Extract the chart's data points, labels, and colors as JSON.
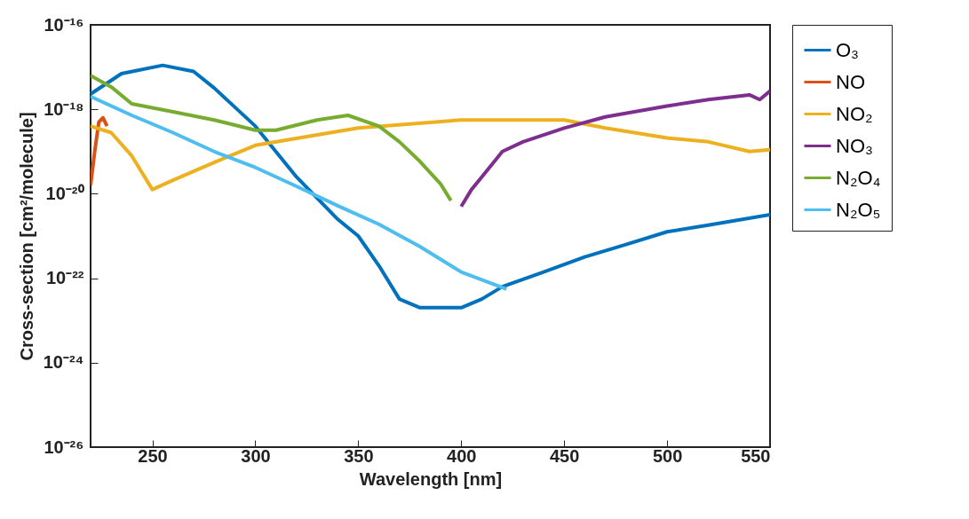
{
  "chart_data": {
    "type": "line",
    "xlabel": "Wavelength [nm]",
    "ylabel": "Cross-section [cm²/molecule]",
    "log": "y",
    "grid": false,
    "legend": "top right",
    "line_style": "solid",
    "xlim": [
      220,
      550
    ],
    "xticks": [
      250,
      300,
      350,
      400,
      450,
      500,
      550
    ],
    "ylim": [
      1e-26,
      1e-16
    ],
    "yticks": [
      {
        "value": 1e-26,
        "label": "10⁻²⁶"
      },
      {
        "value": 1e-24,
        "label": "10⁻²⁴"
      },
      {
        "value": 1e-22,
        "label": "10⁻²²"
      },
      {
        "value": 1e-20,
        "label": "10⁻²⁰"
      },
      {
        "value": 1e-18,
        "label": "10⁻¹⁸"
      },
      {
        "value": 1e-16,
        "label": "10⁻¹⁶"
      }
    ],
    "series": [
      {
        "name": "O₃",
        "color": "#0072bd",
        "x": [
          220,
          235,
          255,
          270,
          280,
          300,
          320,
          340,
          350,
          360,
          370,
          380,
          390,
          400,
          410,
          420,
          440,
          460,
          480,
          500,
          520,
          550
        ],
        "values": [
          2.3e-18,
          7e-18,
          1.1e-17,
          7.9e-18,
          3.2e-18,
          4e-19,
          2.5e-20,
          2.5e-21,
          1e-21,
          2e-22,
          3.2e-23,
          2e-23,
          2e-23,
          2e-23,
          3.2e-23,
          6.3e-23,
          1.4e-22,
          3.2e-22,
          6.3e-22,
          1.26e-21,
          1.8e-21,
          3.2e-21
        ]
      },
      {
        "name": "NO",
        "color": "#d95319",
        "x": [
          220,
          222,
          224,
          226,
          228
        ],
        "values": [
          1.6e-20,
          1e-19,
          5e-19,
          6.3e-19,
          4e-19
        ]
      },
      {
        "name": "NO₂",
        "color": "#edb120",
        "x": [
          220,
          230,
          240,
          250,
          260,
          280,
          300,
          350,
          400,
          450,
          470,
          500,
          520,
          540,
          550
        ],
        "values": [
          4e-19,
          2.8e-19,
          7.9e-20,
          1.26e-20,
          2.1e-20,
          5.5e-20,
          1.4e-19,
          3.6e-19,
          5.6e-19,
          5.6e-19,
          3.6e-19,
          2.1e-19,
          1.7e-19,
          1e-19,
          1.1e-19
        ]
      },
      {
        "name": "NO₃",
        "color": "#7e2f8e",
        "x": [
          400,
          405,
          410,
          420,
          430,
          450,
          470,
          500,
          520,
          540,
          545,
          550
        ],
        "values": [
          5e-21,
          1.26e-20,
          2.5e-20,
          1e-19,
          1.7e-19,
          3.6e-19,
          6.6e-19,
          1.2e-18,
          1.7e-18,
          2.2e-18,
          1.7e-18,
          2.7e-18
        ]
      },
      {
        "name": "N₂O₄",
        "color": "#77ac30",
        "x": [
          220,
          230,
          240,
          260,
          280,
          300,
          310,
          330,
          345,
          360,
          370,
          380,
          390,
          395
        ],
        "values": [
          6.3e-18,
          3.4e-18,
          1.35e-18,
          8.7e-19,
          5.6e-19,
          3.2e-19,
          3.2e-19,
          5.6e-19,
          7.2e-19,
          4e-19,
          1.7e-19,
          5.8e-20,
          1.7e-20,
          6.9e-21
        ]
      },
      {
        "name": "N₂O₅",
        "color": "#4dbeee",
        "x": [
          220,
          240,
          260,
          280,
          300,
          320,
          340,
          360,
          380,
          400,
          422
        ],
        "values": [
          2e-18,
          7.2e-19,
          2.8e-19,
          1e-19,
          4.2e-20,
          1.5e-20,
          5.2e-21,
          1.9e-21,
          5.6e-22,
          1.4e-22,
          5.5e-23
        ]
      }
    ]
  }
}
